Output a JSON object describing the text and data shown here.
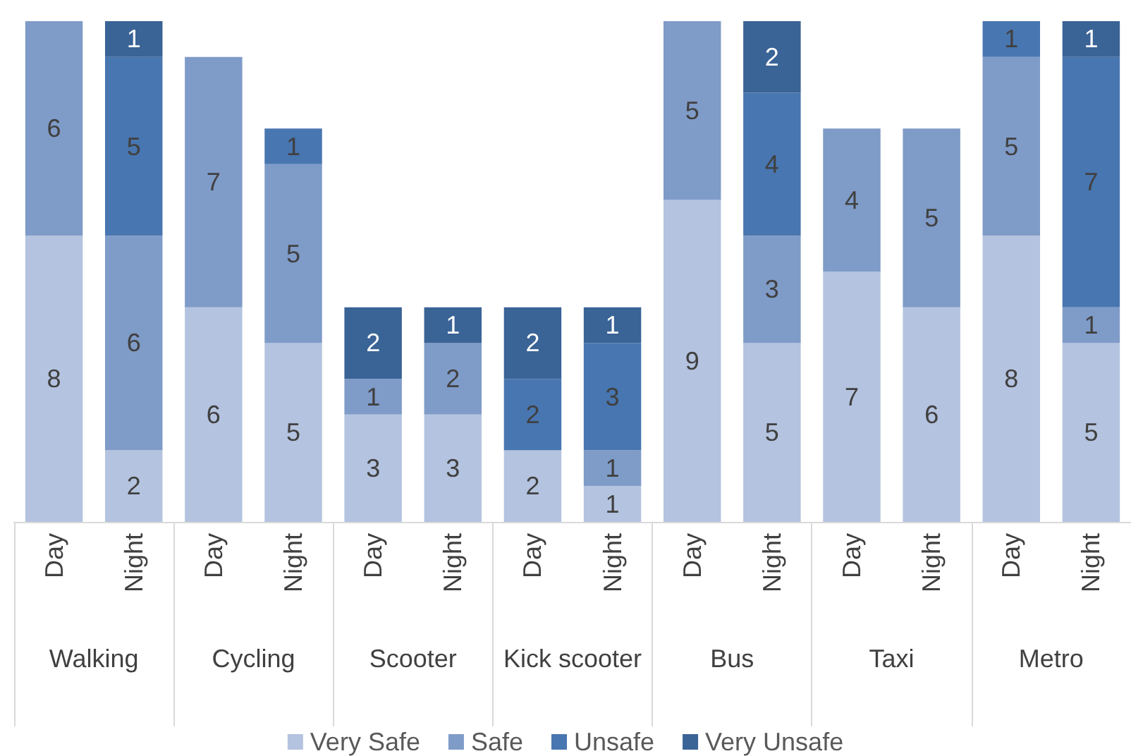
{
  "chart_data": {
    "type": "bar",
    "stacked": true,
    "data_labels": true,
    "legend": "bottom",
    "categories": [
      "Day",
      "Night",
      "Day",
      "Night",
      "Day",
      "Night",
      "Day",
      "Night",
      "Day",
      "Night",
      "Day",
      "Night",
      "Day",
      "Night"
    ],
    "annotations": [
      "Walking",
      "Cycling",
      "Scooter",
      "Kick scooter",
      "Bus",
      "Taxi",
      "Metro"
    ],
    "ylim": [
      0,
      14
    ],
    "series": [
      {
        "name": "Very Safe",
        "color": "#b4c3df",
        "values": [
          8,
          2,
          6,
          5,
          3,
          3,
          2,
          1,
          9,
          5,
          7,
          6,
          8,
          5
        ]
      },
      {
        "name": "Safe",
        "color": "#7f9bc8",
        "values": [
          6,
          6,
          7,
          5,
          1,
          2,
          null,
          1,
          5,
          3,
          4,
          5,
          5,
          1
        ]
      },
      {
        "name": "Unsafe",
        "color": "#4876b0",
        "values": [
          null,
          5,
          null,
          1,
          null,
          null,
          2,
          3,
          null,
          4,
          null,
          null,
          1,
          7
        ]
      },
      {
        "name": "Very Unsafe",
        "color": "#3a6396",
        "values": [
          null,
          1,
          null,
          null,
          2,
          1,
          2,
          1,
          null,
          2,
          null,
          null,
          null,
          1
        ]
      }
    ]
  }
}
